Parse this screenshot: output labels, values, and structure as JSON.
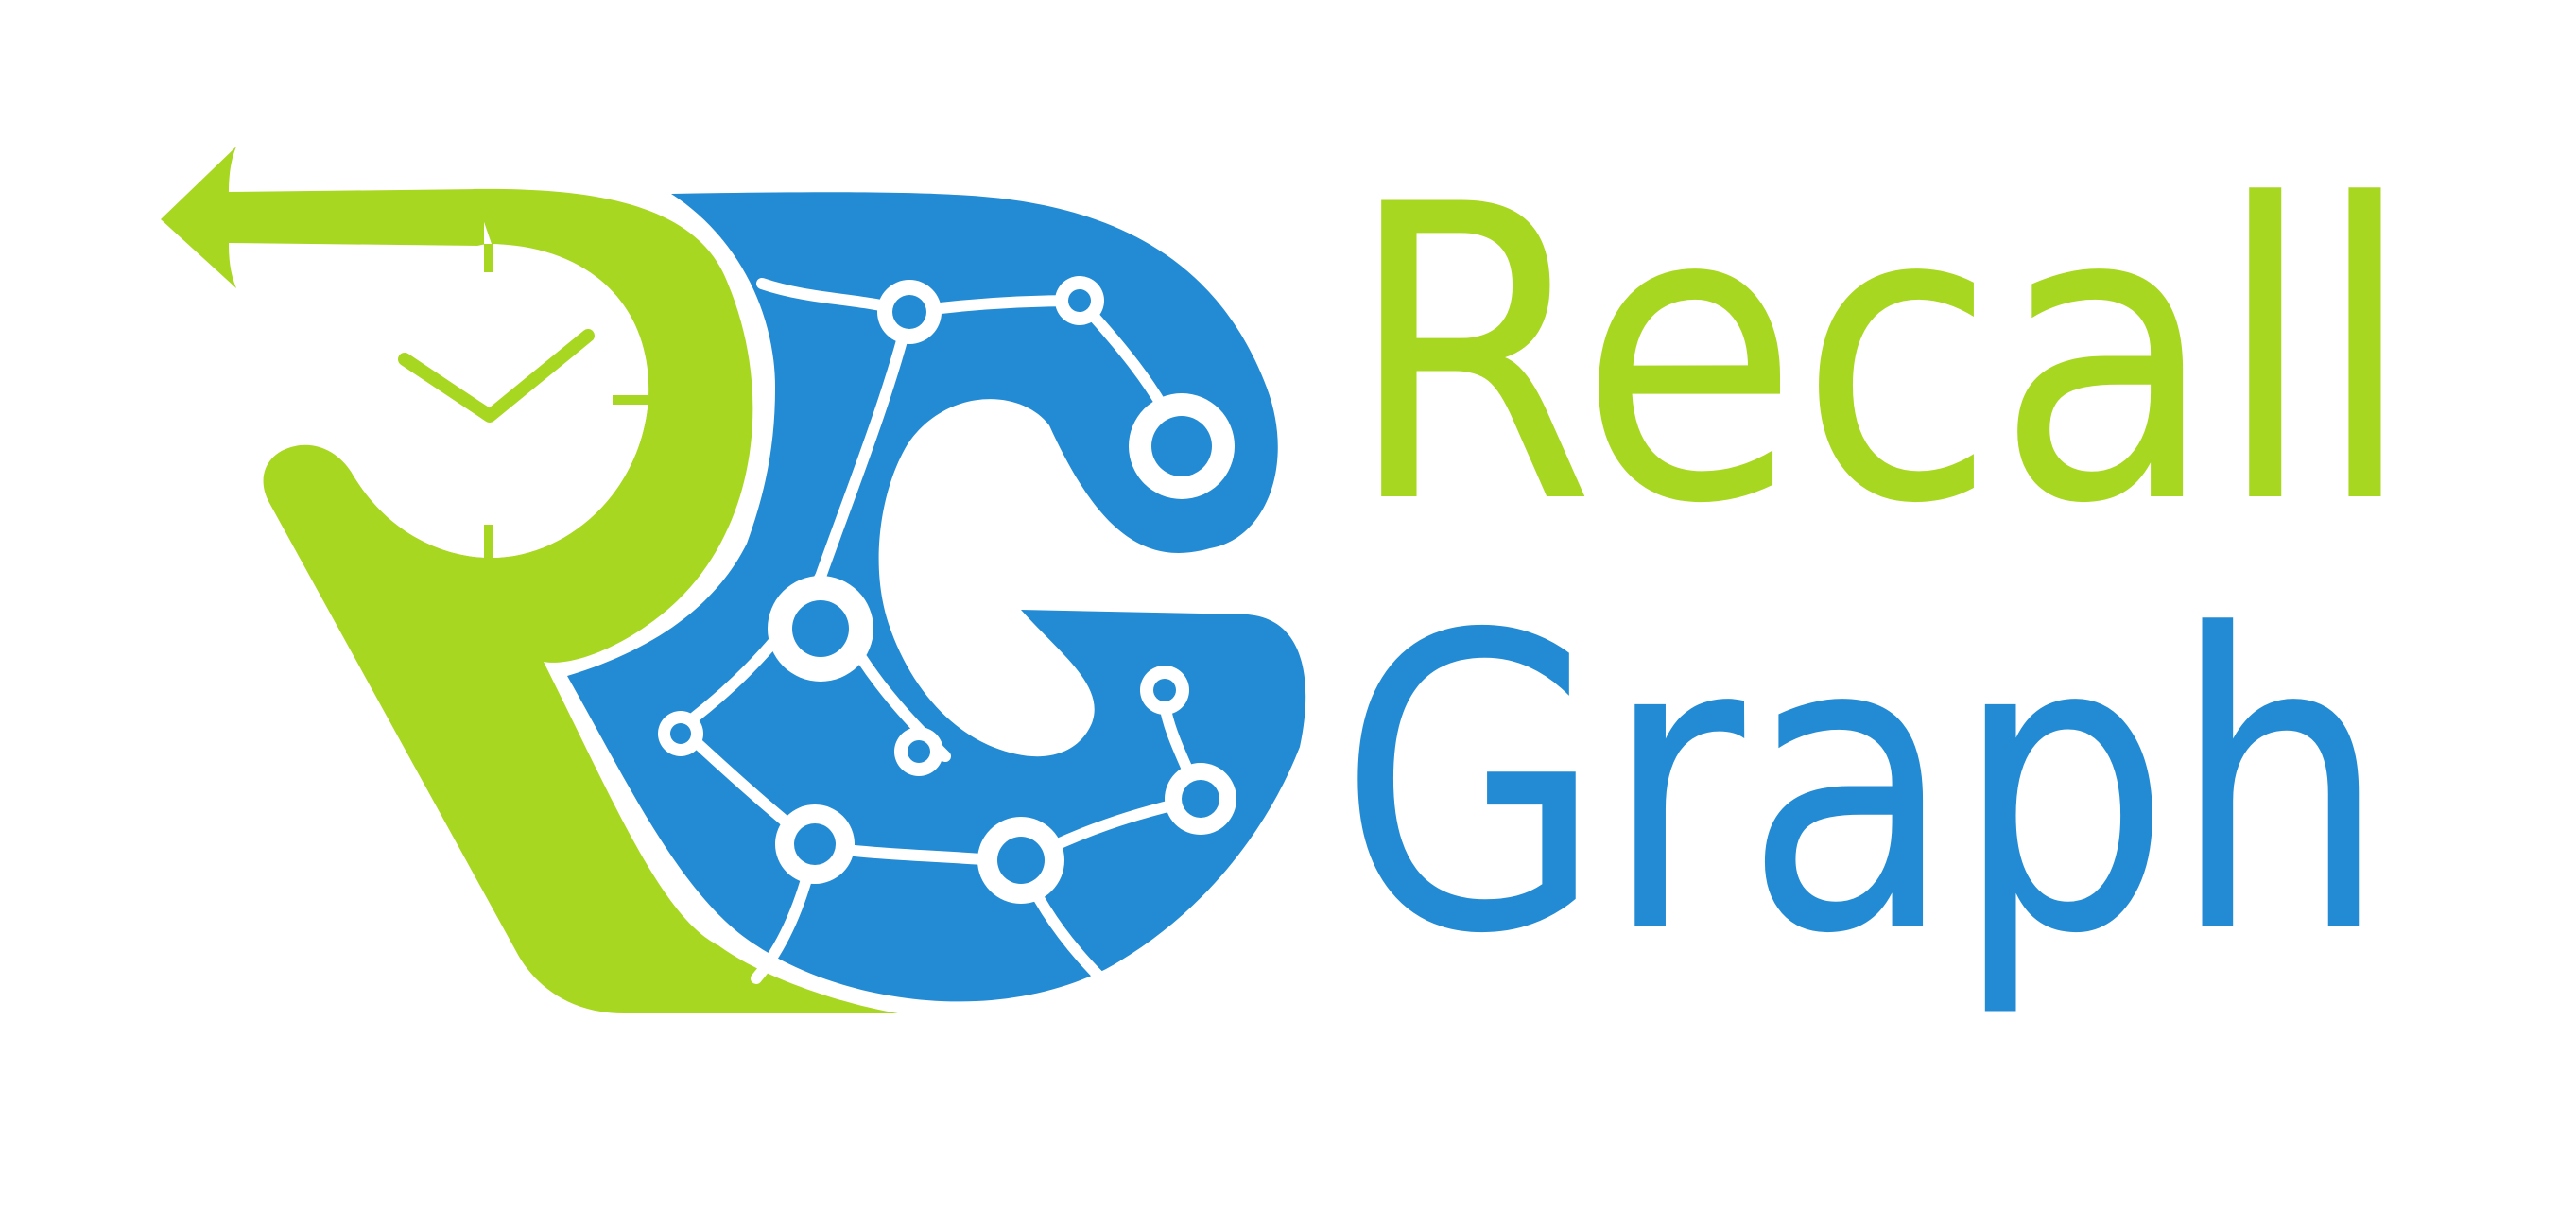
{
  "brand": {
    "line1": "Recall",
    "line2": "Graph",
    "colors": {
      "green": "#a8d721",
      "blue": "#238bd4",
      "background": "#ffffff"
    }
  },
  "icons": {
    "mark": "recallgraph-logo-mark",
    "clock": "clock-icon",
    "arrow": "back-arrow-icon",
    "graph": "network-graph-icon"
  }
}
